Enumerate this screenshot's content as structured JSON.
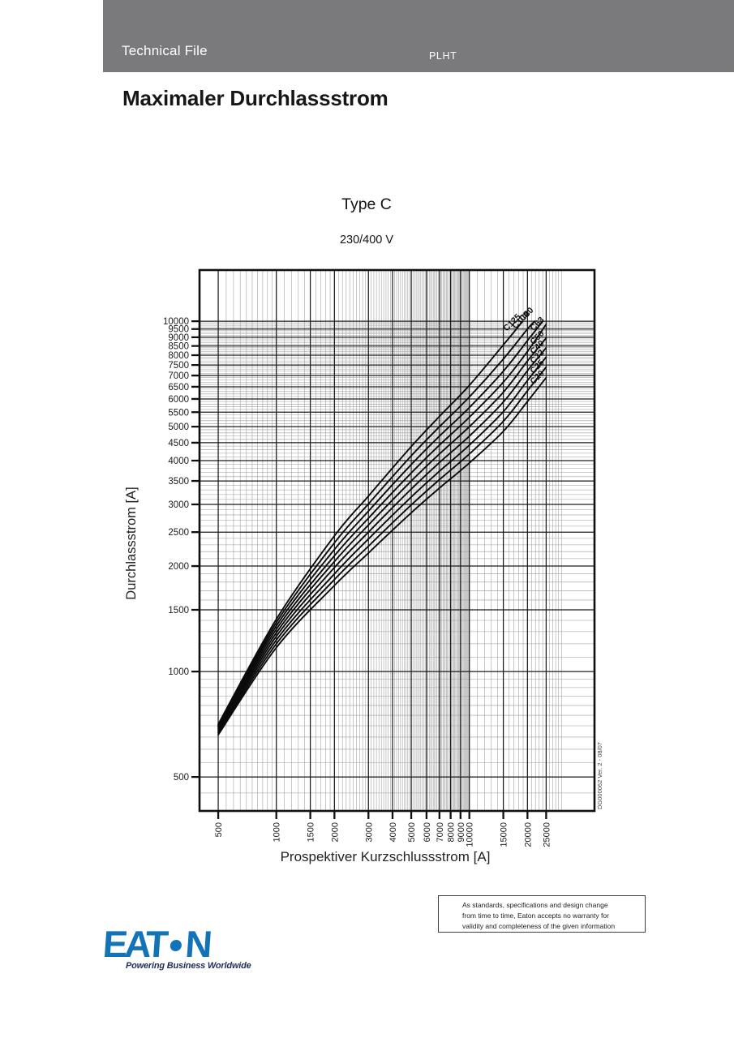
{
  "header": {
    "banner_title": "Technical File",
    "product_code": "PLHT",
    "banner_color": "#7a7a7d",
    "text_color": "#ffffff"
  },
  "document_title": "Maximaler Durchlassstrom",
  "chart_data": {
    "type": "line",
    "title": "Type C",
    "subtitle": "230/400 V",
    "xlabel": "Prospektiver Kurzschlussstrom [A]",
    "ylabel": "Durchlassstrom  [A]",
    "x_scale": "log",
    "y_scale": "log",
    "xlim": [
      400,
      44500
    ],
    "ylim": [
      400,
      14000
    ],
    "x_ticks": [
      500,
      1000,
      1500,
      2000,
      3000,
      4000,
      5000,
      6000,
      7000,
      8000,
      9000,
      10000,
      15000,
      20000,
      25000
    ],
    "y_ticks": [
      500,
      1000,
      1500,
      2000,
      2500,
      3000,
      3500,
      4000,
      4500,
      5000,
      5500,
      6000,
      6500,
      7000,
      7500,
      8000,
      8500,
      9000,
      9500,
      10000
    ],
    "grid": "log paper: minor every 50 (500-1000), every 100 (1000-10000), every 1000 (10000-30000); major at tick values",
    "legend_position": "labels at curve upper ends, rotated 45deg",
    "curve_color": "#0a0a0a",
    "series": [
      {
        "name": "C20",
        "points": [
          [
            500,
            660
          ],
          [
            1000,
            1170
          ],
          [
            2000,
            1760
          ],
          [
            3000,
            2180
          ],
          [
            5000,
            2840
          ],
          [
            7000,
            3340
          ],
          [
            10000,
            3940
          ],
          [
            15000,
            4850
          ],
          [
            20000,
            5900
          ],
          [
            25000,
            6900
          ]
        ],
        "label_offset": [
          -2,
          -5
        ]
      },
      {
        "name": "C25",
        "points": [
          [
            500,
            668
          ],
          [
            1000,
            1200
          ],
          [
            2000,
            1830
          ],
          [
            3000,
            2280
          ],
          [
            5000,
            2990
          ],
          [
            7000,
            3530
          ],
          [
            10000,
            4180
          ],
          [
            15000,
            5180
          ],
          [
            20000,
            6330
          ],
          [
            25000,
            7400
          ]
        ],
        "label_offset": [
          -2,
          -5
        ]
      },
      {
        "name": "C32",
        "points": [
          [
            500,
            675
          ],
          [
            1000,
            1230
          ],
          [
            2000,
            1900
          ],
          [
            3000,
            2390
          ],
          [
            5000,
            3150
          ],
          [
            7000,
            3730
          ],
          [
            10000,
            4430
          ],
          [
            15000,
            5520
          ],
          [
            20000,
            6770
          ],
          [
            25000,
            7900
          ]
        ],
        "label_offset": [
          -2,
          -5
        ]
      },
      {
        "name": "C40",
        "points": [
          [
            500,
            682
          ],
          [
            1000,
            1260
          ],
          [
            2000,
            1980
          ],
          [
            3000,
            2500
          ],
          [
            5000,
            3320
          ],
          [
            7000,
            3950
          ],
          [
            10000,
            4700
          ],
          [
            15000,
            5880
          ],
          [
            20000,
            7220
          ],
          [
            25000,
            8400
          ]
        ],
        "label_offset": [
          -2,
          -5
        ]
      },
      {
        "name": "C50",
        "points": [
          [
            500,
            688
          ],
          [
            1000,
            1290
          ],
          [
            2000,
            2060
          ],
          [
            3000,
            2620
          ],
          [
            5000,
            3500
          ],
          [
            7000,
            4180
          ],
          [
            10000,
            5000
          ],
          [
            15000,
            6270
          ],
          [
            20000,
            7700
          ],
          [
            25000,
            8950
          ]
        ],
        "label_offset": [
          -2,
          -5
        ]
      },
      {
        "name": "C63",
        "points": [
          [
            500,
            694
          ],
          [
            1000,
            1320
          ],
          [
            2000,
            2140
          ],
          [
            3000,
            2740
          ],
          [
            5000,
            3690
          ],
          [
            7000,
            4430
          ],
          [
            10000,
            5320
          ],
          [
            15000,
            6700
          ],
          [
            20000,
            8200
          ],
          [
            25000,
            9800
          ]
        ],
        "label_offset": [
          -2,
          -5
        ]
      },
      {
        "name": "C80",
        "points": [
          [
            500,
            699
          ],
          [
            1000,
            1350
          ],
          [
            2000,
            2230
          ],
          [
            3000,
            2870
          ],
          [
            5000,
            3900
          ],
          [
            7000,
            4700
          ],
          [
            10000,
            5670
          ],
          [
            15000,
            7200
          ],
          [
            20000,
            8800
          ],
          [
            24000,
            10000
          ]
        ],
        "label_offset": [
          -11,
          -13
        ]
      },
      {
        "name": "C100",
        "points": [
          [
            500,
            703
          ],
          [
            1000,
            1380
          ],
          [
            2000,
            2330
          ],
          [
            3000,
            3010
          ],
          [
            5000,
            4130
          ],
          [
            7000,
            5000
          ],
          [
            10000,
            6080
          ],
          [
            15000,
            7800
          ],
          [
            20000,
            9500
          ],
          [
            21800,
            10000
          ]
        ],
        "label_offset": [
          -6,
          -8
        ]
      },
      {
        "name": "C125",
        "points": [
          [
            500,
            707
          ],
          [
            1000,
            1410
          ],
          [
            2000,
            2440
          ],
          [
            3000,
            3170
          ],
          [
            5000,
            4390
          ],
          [
            7000,
            5350
          ],
          [
            10000,
            6560
          ],
          [
            15000,
            8560
          ],
          [
            18900,
            10000
          ]
        ],
        "label_offset": [
          -2,
          -5
        ]
      }
    ],
    "version_note": "DG000062  Ver. 2 - 08/07"
  },
  "disclaimer": {
    "line1": "As standards, specifications and design change",
    "line2": "from time to time, Eaton accepts no warranty for",
    "line3": "validity and completeness of the given information"
  },
  "logo": {
    "prefix": "EAT",
    "suffix": "N",
    "tagline": "Powering Business Worldwide",
    "brand_color": "#1273b9"
  }
}
